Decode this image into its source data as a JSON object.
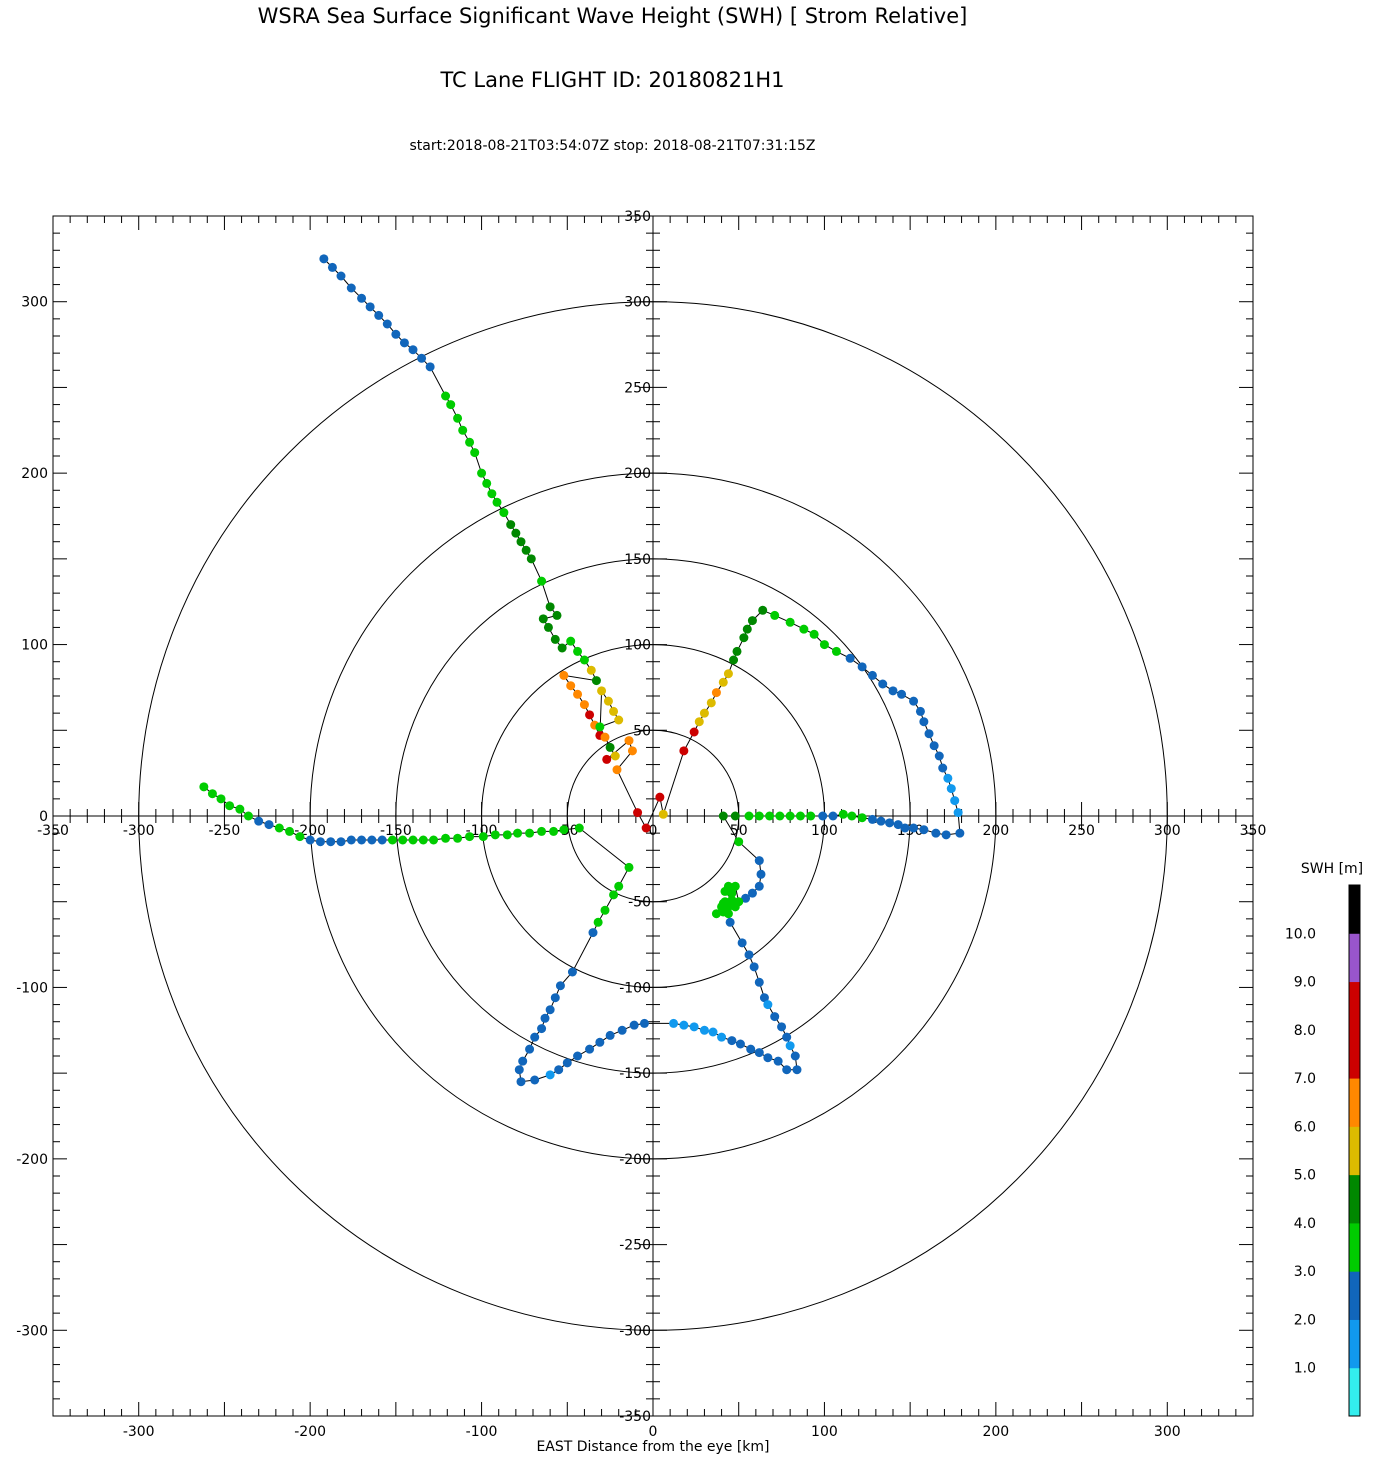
{
  "title": "WSRA Sea Surface Significant Wave Height (SWH) [ Strom Relative]",
  "subtitle": "TC Lane FLIGHT ID: 20180821H1",
  "time_range": "start:2018-08-21T03:54:07Z stop: 2018-08-21T07:31:15Z",
  "chart_data": {
    "type": "scatter",
    "title": "WSRA Sea Surface Significant Wave Height (SWH) [ Strom Relative]",
    "subtitle": "TC Lane FLIGHT ID: 20180821H1",
    "xlabel": "EAST Distance from the eye [km]",
    "ylabel": "",
    "xlim": [
      -350,
      350
    ],
    "ylim": [
      -350,
      350
    ],
    "range_rings": [
      50,
      100,
      150,
      200,
      300
    ],
    "x_ticks": [
      -300,
      -200,
      -100,
      0,
      100,
      200,
      300
    ],
    "y_ticks": [
      -300,
      -200,
      -100,
      0,
      100,
      200,
      300
    ],
    "inner_ticks": [
      -350,
      -300,
      -250,
      -200,
      -150,
      -100,
      -50,
      0,
      50,
      100,
      150,
      200,
      250,
      300,
      350
    ],
    "colorbar": {
      "title": "SWH [m]",
      "vmin": 0,
      "vmax": 11,
      "labels": [
        "1.0",
        "2.0",
        "3.0",
        "4.0",
        "5.0",
        "6.0",
        "7.0",
        "8.0",
        "9.0",
        "10.0"
      ],
      "label_values": [
        1,
        2,
        3,
        4,
        5,
        6,
        7,
        8,
        9,
        10
      ],
      "colors": [
        "#33eeee",
        "#1199ee",
        "#1166bb",
        "#00cc00",
        "#008800",
        "#ddbb00",
        "#ff8800",
        "#cc0000",
        "#cc0000",
        "#9955cc",
        "#000000"
      ]
    },
    "points": [
      {
        "x": -192,
        "y": 325,
        "c": 2
      },
      {
        "x": -187,
        "y": 320,
        "c": 2
      },
      {
        "x": -182,
        "y": 315,
        "c": 2
      },
      {
        "x": -176,
        "y": 308,
        "c": 2
      },
      {
        "x": -170,
        "y": 302,
        "c": 2
      },
      {
        "x": -165,
        "y": 297,
        "c": 2
      },
      {
        "x": -160,
        "y": 292,
        "c": 2
      },
      {
        "x": -155,
        "y": 287,
        "c": 2
      },
      {
        "x": -150,
        "y": 281,
        "c": 2
      },
      {
        "x": -145,
        "y": 276,
        "c": 2
      },
      {
        "x": -140,
        "y": 272,
        "c": 2
      },
      {
        "x": -135,
        "y": 267,
        "c": 2
      },
      {
        "x": -130,
        "y": 262,
        "c": 2
      },
      {
        "x": -121,
        "y": 245,
        "c": 3
      },
      {
        "x": -118,
        "y": 240,
        "c": 3
      },
      {
        "x": -114,
        "y": 232,
        "c": 3
      },
      {
        "x": -111,
        "y": 225,
        "c": 3
      },
      {
        "x": -107,
        "y": 218,
        "c": 3
      },
      {
        "x": -104,
        "y": 212,
        "c": 3
      },
      {
        "x": -100,
        "y": 200,
        "c": 3
      },
      {
        "x": -97,
        "y": 194,
        "c": 3
      },
      {
        "x": -94,
        "y": 188,
        "c": 3
      },
      {
        "x": -91,
        "y": 183,
        "c": 3
      },
      {
        "x": -87,
        "y": 177,
        "c": 3
      },
      {
        "x": -83,
        "y": 170,
        "c": 4
      },
      {
        "x": -80,
        "y": 165,
        "c": 4
      },
      {
        "x": -77,
        "y": 160,
        "c": 4
      },
      {
        "x": -74,
        "y": 155,
        "c": 4
      },
      {
        "x": -71,
        "y": 150,
        "c": 4
      },
      {
        "x": -65,
        "y": 137,
        "c": 3
      },
      {
        "x": -60,
        "y": 122,
        "c": 4
      },
      {
        "x": -56,
        "y": 117,
        "c": 4
      },
      {
        "x": -64,
        "y": 115,
        "c": 4
      },
      {
        "x": -61,
        "y": 110,
        "c": 4
      },
      {
        "x": -57,
        "y": 103,
        "c": 4
      },
      {
        "x": -53,
        "y": 98,
        "c": 4
      },
      {
        "x": -48,
        "y": 102,
        "c": 3
      },
      {
        "x": -44,
        "y": 96,
        "c": 3
      },
      {
        "x": -40,
        "y": 91,
        "c": 3
      },
      {
        "x": -36,
        "y": 85,
        "c": 5
      },
      {
        "x": -33,
        "y": 79,
        "c": 4
      },
      {
        "x": -52,
        "y": 82,
        "c": 6
      },
      {
        "x": -48,
        "y": 76,
        "c": 6
      },
      {
        "x": -44,
        "y": 71,
        "c": 6
      },
      {
        "x": -40,
        "y": 65,
        "c": 6
      },
      {
        "x": -37,
        "y": 59,
        "c": 7
      },
      {
        "x": -34,
        "y": 53,
        "c": 6
      },
      {
        "x": -31,
        "y": 47,
        "c": 7
      },
      {
        "x": -30,
        "y": 73,
        "c": 5
      },
      {
        "x": -26,
        "y": 67,
        "c": 5
      },
      {
        "x": -23,
        "y": 61,
        "c": 5
      },
      {
        "x": -20,
        "y": 56,
        "c": 5
      },
      {
        "x": -31,
        "y": 52,
        "c": 3
      },
      {
        "x": -28,
        "y": 46,
        "c": 6
      },
      {
        "x": -25,
        "y": 40,
        "c": 4
      },
      {
        "x": -22,
        "y": 35,
        "c": 5
      },
      {
        "x": -27,
        "y": 33,
        "c": 7
      },
      {
        "x": -14,
        "y": 44,
        "c": 6
      },
      {
        "x": -12,
        "y": 38,
        "c": 6
      },
      {
        "x": -21,
        "y": 27,
        "c": 6
      },
      {
        "x": -9,
        "y": 2,
        "c": 7
      },
      {
        "x": -4,
        "y": -7,
        "c": 7
      },
      {
        "x": 4,
        "y": 11,
        "c": 7
      },
      {
        "x": 6,
        "y": 1,
        "c": 5
      },
      {
        "x": 18,
        "y": 38,
        "c": 7
      },
      {
        "x": 24,
        "y": 49,
        "c": 7
      },
      {
        "x": 27,
        "y": 55,
        "c": 5
      },
      {
        "x": 30,
        "y": 60,
        "c": 5
      },
      {
        "x": 34,
        "y": 66,
        "c": 5
      },
      {
        "x": 37,
        "y": 72,
        "c": 6
      },
      {
        "x": 41,
        "y": 78,
        "c": 5
      },
      {
        "x": 44,
        "y": 83,
        "c": 5
      },
      {
        "x": 47,
        "y": 91,
        "c": 4
      },
      {
        "x": 49,
        "y": 96,
        "c": 4
      },
      {
        "x": 53,
        "y": 104,
        "c": 4
      },
      {
        "x": 55,
        "y": 109,
        "c": 4
      },
      {
        "x": 58,
        "y": 114,
        "c": 4
      },
      {
        "x": 64,
        "y": 120,
        "c": 4
      },
      {
        "x": 71,
        "y": 117,
        "c": 3
      },
      {
        "x": 80,
        "y": 113,
        "c": 3
      },
      {
        "x": 88,
        "y": 109,
        "c": 3
      },
      {
        "x": 94,
        "y": 106,
        "c": 3
      },
      {
        "x": 100,
        "y": 100,
        "c": 3
      },
      {
        "x": 107,
        "y": 96,
        "c": 3
      },
      {
        "x": 115,
        "y": 92,
        "c": 2
      },
      {
        "x": 122,
        "y": 87,
        "c": 2
      },
      {
        "x": 128,
        "y": 82,
        "c": 2
      },
      {
        "x": 134,
        "y": 77,
        "c": 2
      },
      {
        "x": 140,
        "y": 73,
        "c": 2
      },
      {
        "x": 145,
        "y": 71,
        "c": 2
      },
      {
        "x": 152,
        "y": 67,
        "c": 2
      },
      {
        "x": 156,
        "y": 61,
        "c": 2
      },
      {
        "x": 158,
        "y": 55,
        "c": 2
      },
      {
        "x": 161,
        "y": 48,
        "c": 2
      },
      {
        "x": 164,
        "y": 41,
        "c": 2
      },
      {
        "x": 167,
        "y": 35,
        "c": 2
      },
      {
        "x": 169,
        "y": 28,
        "c": 2
      },
      {
        "x": 172,
        "y": 22,
        "c": 1
      },
      {
        "x": 174,
        "y": 16,
        "c": 1
      },
      {
        "x": 176,
        "y": 9,
        "c": 1
      },
      {
        "x": 178,
        "y": 2,
        "c": 1
      },
      {
        "x": 179,
        "y": -10,
        "c": 2
      },
      {
        "x": 171,
        "y": -11,
        "c": 2
      },
      {
        "x": 165,
        "y": -10,
        "c": 2
      },
      {
        "x": 158,
        "y": -8,
        "c": 2
      },
      {
        "x": 152,
        "y": -7,
        "c": 2
      },
      {
        "x": 147,
        "y": -7,
        "c": 2
      },
      {
        "x": 143,
        "y": -5,
        "c": 2
      },
      {
        "x": 138,
        "y": -4,
        "c": 2
      },
      {
        "x": 133,
        "y": -3,
        "c": 2
      },
      {
        "x": 128,
        "y": -2,
        "c": 2
      },
      {
        "x": 122,
        "y": -1,
        "c": 3
      },
      {
        "x": 116,
        "y": 0,
        "c": 3
      },
      {
        "x": 111,
        "y": 1,
        "c": 3
      },
      {
        "x": 105,
        "y": 0,
        "c": 2
      },
      {
        "x": 99,
        "y": 0,
        "c": 2
      },
      {
        "x": 92,
        "y": 0,
        "c": 3
      },
      {
        "x": 86,
        "y": 0,
        "c": 3
      },
      {
        "x": 80,
        "y": 0,
        "c": 3
      },
      {
        "x": 74,
        "y": 0,
        "c": 3
      },
      {
        "x": 68,
        "y": 0,
        "c": 3
      },
      {
        "x": 62,
        "y": 0,
        "c": 3
      },
      {
        "x": 56,
        "y": 0,
        "c": 3
      },
      {
        "x": 48,
        "y": 0,
        "c": 4
      },
      {
        "x": 41,
        "y": 0,
        "c": 4
      },
      {
        "x": 50,
        "y": -15,
        "c": 3
      },
      {
        "x": 62,
        "y": -26,
        "c": 2
      },
      {
        "x": 63,
        "y": -34,
        "c": 2
      },
      {
        "x": 62,
        "y": -41,
        "c": 2
      },
      {
        "x": 58,
        "y": -45,
        "c": 2
      },
      {
        "x": 54,
        "y": -48,
        "c": 2
      },
      {
        "x": 50,
        "y": -50,
        "c": 3
      },
      {
        "x": 48,
        "y": -41,
        "c": 3
      },
      {
        "x": 44,
        "y": -41,
        "c": 3
      },
      {
        "x": 46,
        "y": -45,
        "c": 3
      },
      {
        "x": 42,
        "y": -44,
        "c": 3
      },
      {
        "x": 46,
        "y": -49,
        "c": 3
      },
      {
        "x": 42,
        "y": -50,
        "c": 3
      },
      {
        "x": 48,
        "y": -53,
        "c": 3
      },
      {
        "x": 44,
        "y": -53,
        "c": 3
      },
      {
        "x": 40,
        "y": -53,
        "c": 3
      },
      {
        "x": 37,
        "y": -57,
        "c": 3
      },
      {
        "x": 41,
        "y": -54,
        "c": 3
      },
      {
        "x": 41,
        "y": -51,
        "c": 3
      },
      {
        "x": 41,
        "y": -56,
        "c": 3
      },
      {
        "x": 44,
        "y": -57,
        "c": 3
      },
      {
        "x": 45,
        "y": -62,
        "c": 2
      },
      {
        "x": 52,
        "y": -74,
        "c": 2
      },
      {
        "x": 56,
        "y": -81,
        "c": 2
      },
      {
        "x": 59,
        "y": -88,
        "c": 2
      },
      {
        "x": 62,
        "y": -97,
        "c": 2
      },
      {
        "x": 65,
        "y": -106,
        "c": 2
      },
      {
        "x": 67,
        "y": -110,
        "c": 1
      },
      {
        "x": 71,
        "y": -117,
        "c": 2
      },
      {
        "x": 75,
        "y": -123,
        "c": 2
      },
      {
        "x": 78,
        "y": -129,
        "c": 2
      },
      {
        "x": 80,
        "y": -134,
        "c": 1
      },
      {
        "x": 83,
        "y": -140,
        "c": 2
      },
      {
        "x": 84,
        "y": -148,
        "c": 2
      },
      {
        "x": 78,
        "y": -148,
        "c": 2
      },
      {
        "x": 73,
        "y": -143,
        "c": 2
      },
      {
        "x": 67,
        "y": -141,
        "c": 2
      },
      {
        "x": 62,
        "y": -138,
        "c": 2
      },
      {
        "x": 57,
        "y": -136,
        "c": 2
      },
      {
        "x": 51,
        "y": -133,
        "c": 2
      },
      {
        "x": 46,
        "y": -131,
        "c": 2
      },
      {
        "x": 40,
        "y": -129,
        "c": 1
      },
      {
        "x": 35,
        "y": -126,
        "c": 1
      },
      {
        "x": 30,
        "y": -125,
        "c": 1
      },
      {
        "x": 24,
        "y": -123,
        "c": 1
      },
      {
        "x": 18,
        "y": -122,
        "c": 1
      },
      {
        "x": 12,
        "y": -121,
        "c": 1
      },
      {
        "x": -5,
        "y": -121,
        "c": 2
      },
      {
        "x": -11,
        "y": -122,
        "c": 2
      },
      {
        "x": -18,
        "y": -125,
        "c": 2
      },
      {
        "x": -25,
        "y": -128,
        "c": 2
      },
      {
        "x": -31,
        "y": -132,
        "c": 2
      },
      {
        "x": -37,
        "y": -136,
        "c": 2
      },
      {
        "x": -44,
        "y": -140,
        "c": 2
      },
      {
        "x": -50,
        "y": -144,
        "c": 2
      },
      {
        "x": -55,
        "y": -148,
        "c": 2
      },
      {
        "x": -60,
        "y": -151,
        "c": 1
      },
      {
        "x": -69,
        "y": -154,
        "c": 2
      },
      {
        "x": -77,
        "y": -155,
        "c": 2
      },
      {
        "x": -78,
        "y": -148,
        "c": 2
      },
      {
        "x": -76,
        "y": -143,
        "c": 2
      },
      {
        "x": -72,
        "y": -136,
        "c": 2
      },
      {
        "x": -69,
        "y": -129,
        "c": 2
      },
      {
        "x": -65,
        "y": -124,
        "c": 2
      },
      {
        "x": -63,
        "y": -118,
        "c": 2
      },
      {
        "x": -60,
        "y": -113,
        "c": 2
      },
      {
        "x": -57,
        "y": -106,
        "c": 2
      },
      {
        "x": -54,
        "y": -99,
        "c": 2
      },
      {
        "x": -47,
        "y": -91,
        "c": 2
      },
      {
        "x": -35,
        "y": -68,
        "c": 2
      },
      {
        "x": -32,
        "y": -62,
        "c": 3
      },
      {
        "x": -28,
        "y": -55,
        "c": 3
      },
      {
        "x": -23,
        "y": -46,
        "c": 3
      },
      {
        "x": -20,
        "y": -41,
        "c": 3
      },
      {
        "x": -14,
        "y": -30,
        "c": 3
      },
      {
        "x": -43,
        "y": -7,
        "c": 3
      },
      {
        "x": -52,
        "y": -8,
        "c": 3
      },
      {
        "x": -58,
        "y": -9,
        "c": 3
      },
      {
        "x": -65,
        "y": -9,
        "c": 3
      },
      {
        "x": -72,
        "y": -10,
        "c": 3
      },
      {
        "x": -79,
        "y": -10,
        "c": 3
      },
      {
        "x": -85,
        "y": -11,
        "c": 3
      },
      {
        "x": -92,
        "y": -11,
        "c": 3
      },
      {
        "x": -99,
        "y": -12,
        "c": 3
      },
      {
        "x": -107,
        "y": -12,
        "c": 3
      },
      {
        "x": -114,
        "y": -13,
        "c": 3
      },
      {
        "x": -121,
        "y": -13,
        "c": 3
      },
      {
        "x": -128,
        "y": -14,
        "c": 3
      },
      {
        "x": -134,
        "y": -14,
        "c": 3
      },
      {
        "x": -140,
        "y": -14,
        "c": 3
      },
      {
        "x": -146,
        "y": -14,
        "c": 3
      },
      {
        "x": -152,
        "y": -14,
        "c": 3
      },
      {
        "x": -158,
        "y": -14,
        "c": 2
      },
      {
        "x": -164,
        "y": -14,
        "c": 2
      },
      {
        "x": -170,
        "y": -14,
        "c": 2
      },
      {
        "x": -176,
        "y": -14,
        "c": 2
      },
      {
        "x": -182,
        "y": -15,
        "c": 2
      },
      {
        "x": -188,
        "y": -15,
        "c": 2
      },
      {
        "x": -194,
        "y": -15,
        "c": 2
      },
      {
        "x": -200,
        "y": -14,
        "c": 2
      },
      {
        "x": -206,
        "y": -12,
        "c": 3
      },
      {
        "x": -212,
        "y": -9,
        "c": 3
      },
      {
        "x": -218,
        "y": -7,
        "c": 3
      },
      {
        "x": -224,
        "y": -5,
        "c": 2
      },
      {
        "x": -230,
        "y": -3,
        "c": 2
      },
      {
        "x": -236,
        "y": 0,
        "c": 3
      },
      {
        "x": -241,
        "y": 4,
        "c": 3
      },
      {
        "x": -247,
        "y": 6,
        "c": 3
      },
      {
        "x": -252,
        "y": 10,
        "c": 3
      },
      {
        "x": -257,
        "y": 13,
        "c": 3
      },
      {
        "x": -262,
        "y": 17,
        "c": 3
      }
    ]
  }
}
